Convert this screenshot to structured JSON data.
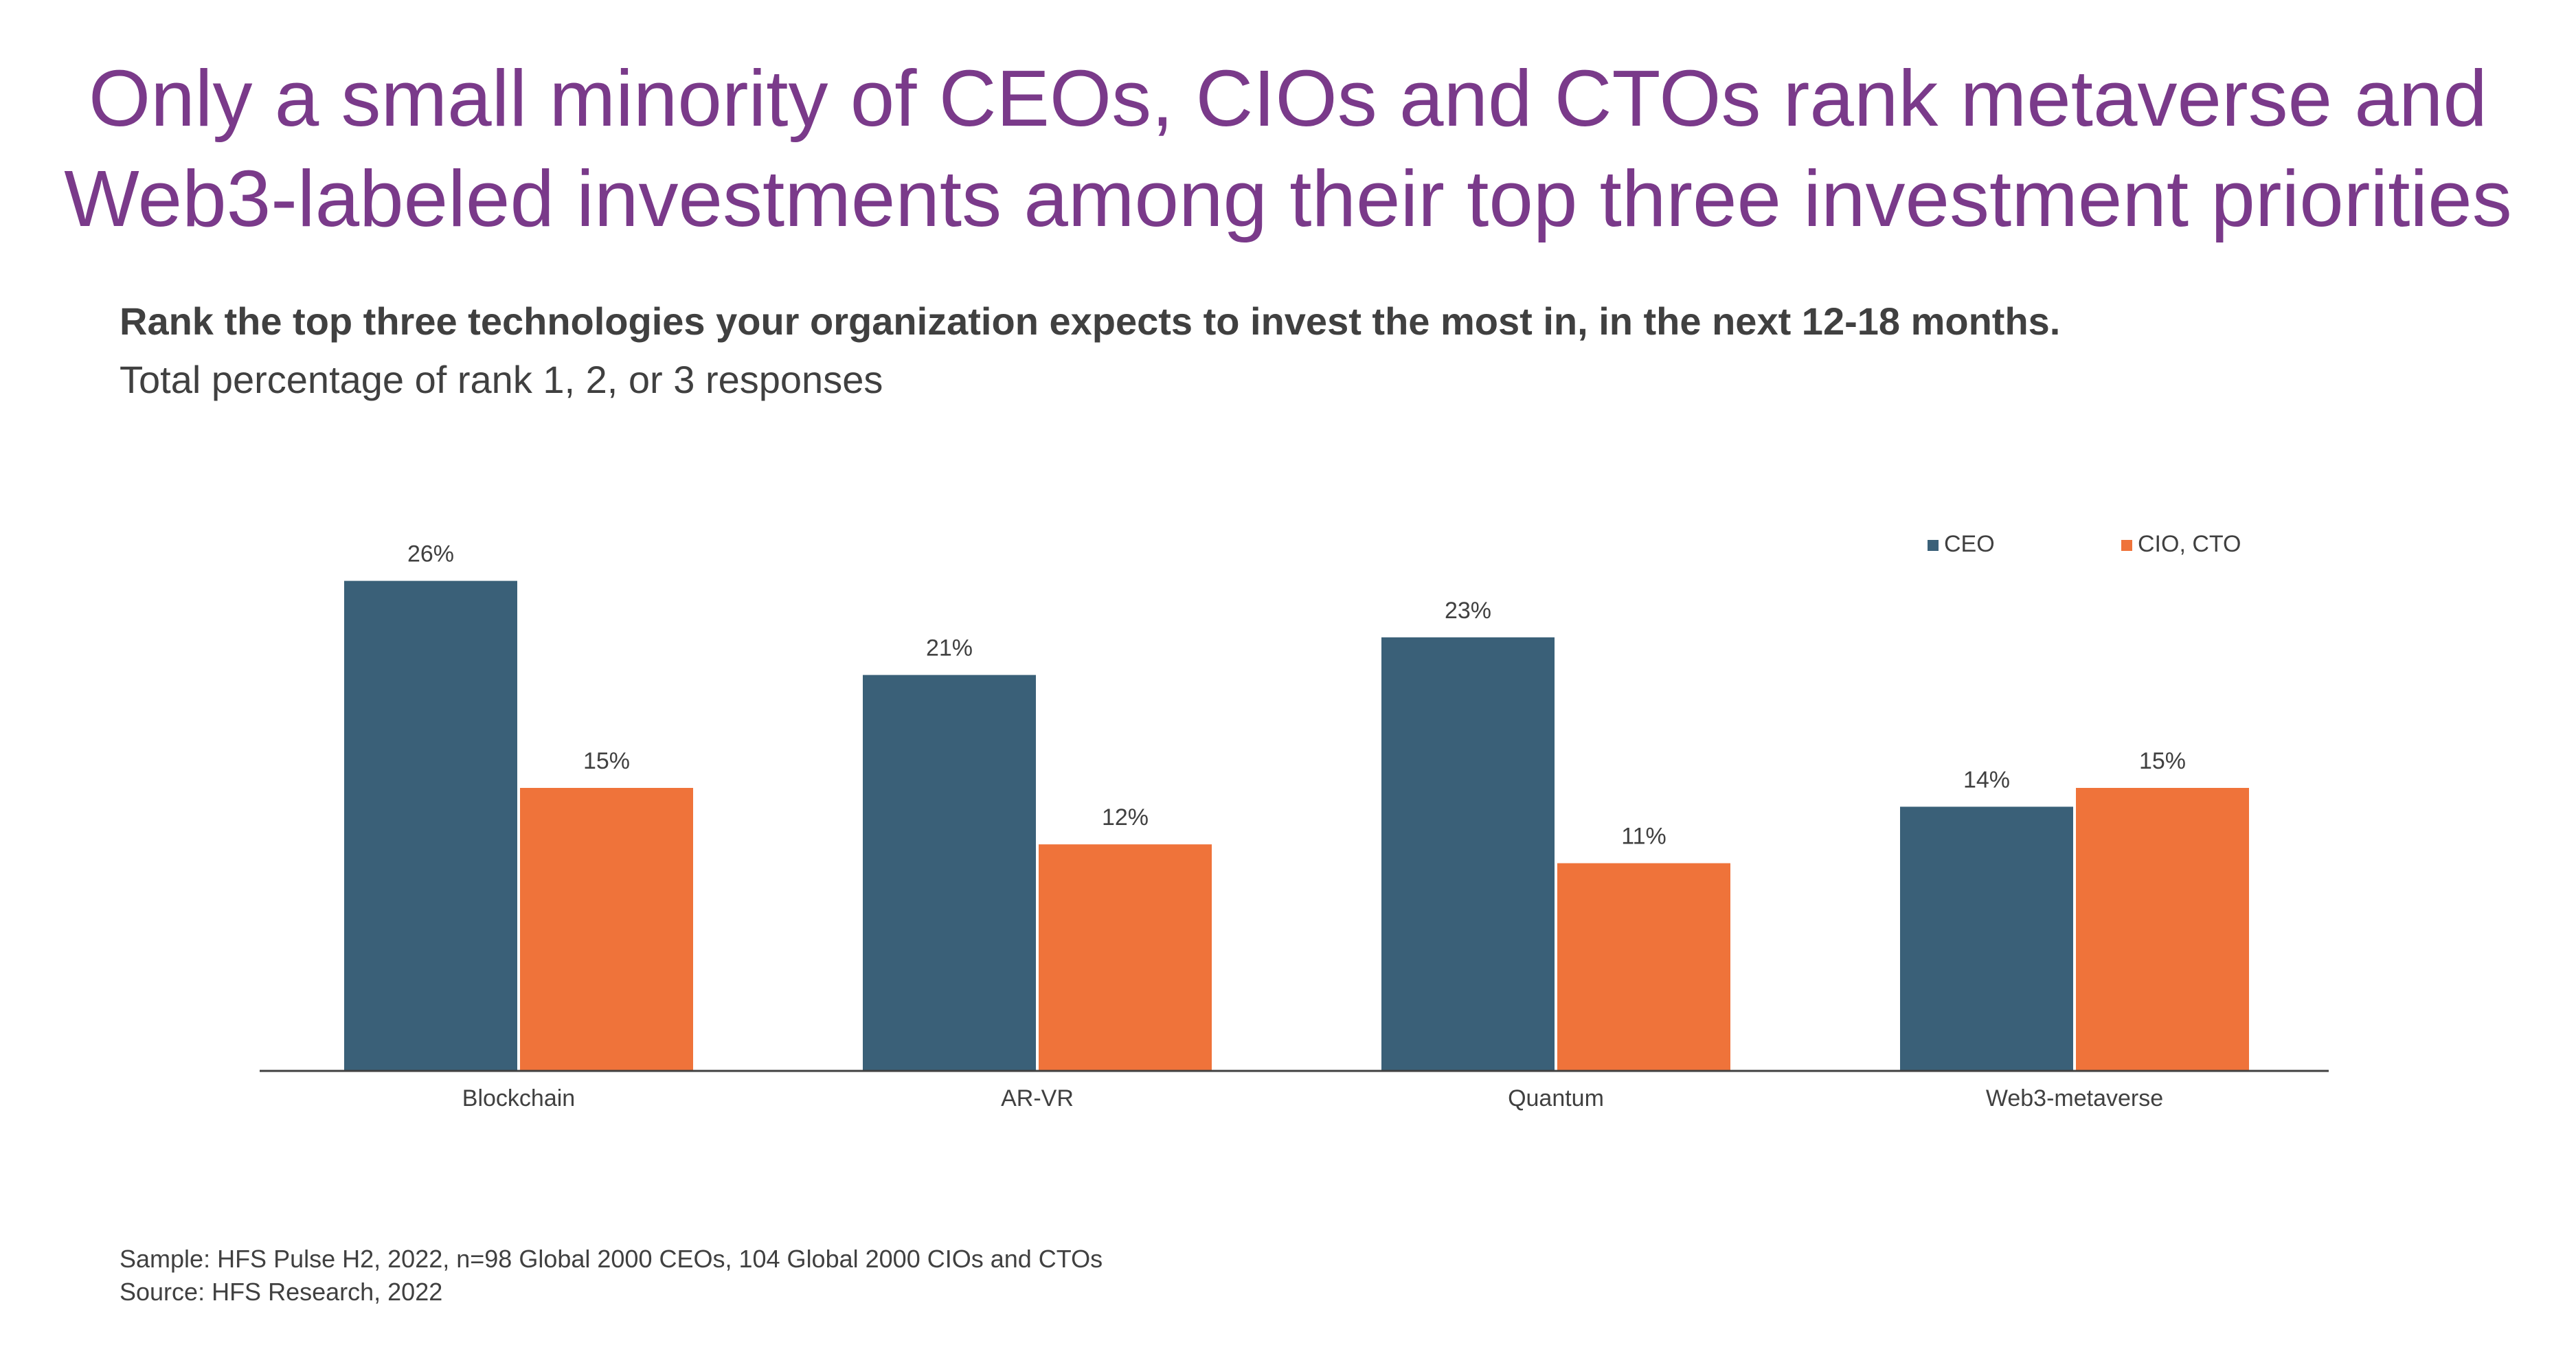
{
  "headline": {
    "line1": "Only a small minority of CEOs, CIOs and CTOs rank metaverse and",
    "line2": "Web3-labeled investments among their top three investment priorities"
  },
  "question": "Rank the top three technologies your organization expects to invest the most in, in the next 12-18 months.",
  "subtitle": "Total percentage of rank 1, 2, or 3 responses",
  "footnotes": {
    "sample": "Sample: HFS Pulse H2, 2022, n=98 Global 2000 CEOs, 104 Global 2000 CIOs and CTOs",
    "source": "Source: HFS Research, 2022"
  },
  "colors": {
    "ceo": "#3a6078",
    "cio_cto": "#ef733a",
    "axis": "#404040"
  },
  "chart_data": {
    "type": "bar",
    "categories": [
      "Blockchain",
      "AR-VR",
      "Quantum",
      "Web3-metaverse"
    ],
    "series": [
      {
        "name": "CEO",
        "values": [
          26,
          21,
          23,
          14
        ],
        "labels": [
          "26%",
          "21%",
          "23%",
          "14%"
        ]
      },
      {
        "name": "CIO, CTO",
        "values": [
          15,
          12,
          11,
          15
        ],
        "labels": [
          "15%",
          "12%",
          "11%",
          "15%"
        ]
      }
    ],
    "ylim": [
      0,
      30
    ],
    "grid": false,
    "legend_position": "top-right",
    "title": "",
    "xlabel": "",
    "ylabel": ""
  }
}
